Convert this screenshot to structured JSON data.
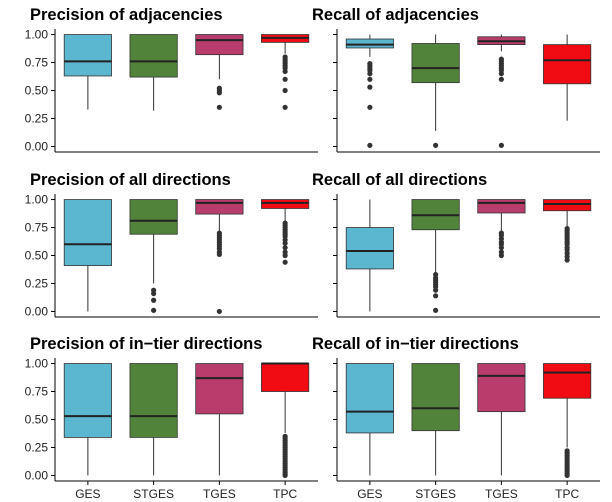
{
  "chart_data": [
    {
      "type": "boxplot",
      "title": "Precision of adjacencies",
      "ylim": [
        0,
        1
      ],
      "yticks": [
        "0.00",
        "0.25",
        "0.50",
        "0.75",
        "1.00"
      ],
      "categories": [
        "GES",
        "STGES",
        "TGES",
        "TPC"
      ],
      "boxes": [
        {
          "name": "GES",
          "whisker_low": 0.33,
          "q1": 0.63,
          "median": 0.76,
          "q3": 1.0,
          "whisker_high": 1.0,
          "outliers": []
        },
        {
          "name": "STGES",
          "whisker_low": 0.32,
          "q1": 0.62,
          "median": 0.76,
          "q3": 1.0,
          "whisker_high": 1.0,
          "outliers": []
        },
        {
          "name": "TGES",
          "whisker_low": 0.6,
          "q1": 0.82,
          "median": 0.95,
          "q3": 1.0,
          "whisker_high": 1.0,
          "outliers": [
            0.52,
            0.5,
            0.48,
            0.35
          ]
        },
        {
          "name": "TPC",
          "whisker_low": 0.83,
          "q1": 0.93,
          "median": 0.97,
          "q3": 1.0,
          "whisker_high": 1.0,
          "outliers": [
            0.8,
            0.78,
            0.76,
            0.74,
            0.72,
            0.7,
            0.67,
            0.6,
            0.5,
            0.35
          ]
        }
      ]
    },
    {
      "type": "boxplot",
      "title": "Recall of adjacencies",
      "ylim": [
        0,
        1
      ],
      "yticks": [
        "0.00",
        "0.25",
        "0.50",
        "0.75",
        "1.00"
      ],
      "categories": [
        "GES",
        "STGES",
        "TGES",
        "TPC"
      ],
      "boxes": [
        {
          "name": "GES",
          "whisker_low": 0.8,
          "q1": 0.88,
          "median": 0.91,
          "q3": 0.96,
          "whisker_high": 1.0,
          "outliers": [
            0.74,
            0.72,
            0.7,
            0.68,
            0.65,
            0.6,
            0.53,
            0.35,
            0.01
          ]
        },
        {
          "name": "STGES",
          "whisker_low": 0.14,
          "q1": 0.57,
          "median": 0.7,
          "q3": 0.92,
          "whisker_high": 1.0,
          "outliers": [
            0.01
          ]
        },
        {
          "name": "TGES",
          "whisker_low": 0.85,
          "q1": 0.91,
          "median": 0.94,
          "q3": 0.98,
          "whisker_high": 1.0,
          "outliers": [
            0.78,
            0.76,
            0.74,
            0.72,
            0.7,
            0.68,
            0.65,
            0.6,
            0.01
          ]
        },
        {
          "name": "TPC",
          "whisker_low": 0.23,
          "q1": 0.56,
          "median": 0.77,
          "q3": 0.91,
          "whisker_high": 1.0,
          "outliers": []
        }
      ]
    },
    {
      "type": "boxplot",
      "title": "Precision of all directions",
      "ylim": [
        0,
        1
      ],
      "yticks": [
        "0.00",
        "0.25",
        "0.50",
        "0.75",
        "1.00"
      ],
      "categories": [
        "GES",
        "STGES",
        "TGES",
        "TPC"
      ],
      "boxes": [
        {
          "name": "GES",
          "whisker_low": 0.0,
          "q1": 0.41,
          "median": 0.6,
          "q3": 1.0,
          "whisker_high": 1.0,
          "outliers": []
        },
        {
          "name": "STGES",
          "whisker_low": 0.25,
          "q1": 0.69,
          "median": 0.81,
          "q3": 1.0,
          "whisker_high": 1.0,
          "outliers": [
            0.19,
            0.16,
            0.1,
            0.01
          ]
        },
        {
          "name": "TGES",
          "whisker_low": 0.72,
          "q1": 0.87,
          "median": 0.97,
          "q3": 1.0,
          "whisker_high": 1.0,
          "outliers": [
            0.7,
            0.68,
            0.66,
            0.64,
            0.62,
            0.6,
            0.58,
            0.56,
            0.53,
            0.51,
            0.0
          ]
        },
        {
          "name": "TPC",
          "whisker_low": 0.8,
          "q1": 0.92,
          "median": 0.97,
          "q3": 1.0,
          "whisker_high": 1.0,
          "outliers": [
            0.79,
            0.77,
            0.75,
            0.73,
            0.71,
            0.69,
            0.67,
            0.64,
            0.61,
            0.57,
            0.53,
            0.5,
            0.44
          ]
        }
      ]
    },
    {
      "type": "boxplot",
      "title": "Recall of all directions",
      "ylim": [
        0,
        1
      ],
      "yticks": [
        "0.00",
        "0.25",
        "0.50",
        "0.75",
        "1.00"
      ],
      "categories": [
        "GES",
        "STGES",
        "TGES",
        "TPC"
      ],
      "boxes": [
        {
          "name": "GES",
          "whisker_low": 0.0,
          "q1": 0.38,
          "median": 0.54,
          "q3": 0.75,
          "whisker_high": 1.0,
          "outliers": []
        },
        {
          "name": "STGES",
          "whisker_low": 0.35,
          "q1": 0.73,
          "median": 0.86,
          "q3": 1.0,
          "whisker_high": 1.0,
          "outliers": [
            0.33,
            0.3,
            0.28,
            0.26,
            0.24,
            0.22,
            0.19,
            0.14,
            0.01
          ]
        },
        {
          "name": "TGES",
          "whisker_low": 0.72,
          "q1": 0.88,
          "median": 0.97,
          "q3": 1.0,
          "whisker_high": 1.0,
          "outliers": [
            0.7,
            0.68,
            0.65,
            0.62,
            0.6,
            0.57,
            0.53,
            0.5
          ]
        },
        {
          "name": "TPC",
          "whisker_low": 0.76,
          "q1": 0.9,
          "median": 0.96,
          "q3": 1.0,
          "whisker_high": 1.0,
          "outliers": [
            0.74,
            0.72,
            0.7,
            0.68,
            0.66,
            0.64,
            0.62,
            0.6,
            0.57,
            0.55,
            0.52,
            0.49,
            0.46
          ]
        }
      ]
    },
    {
      "type": "boxplot",
      "title": "Precision of in−tier directions",
      "ylim": [
        0,
        1
      ],
      "yticks": [
        "0.00",
        "0.25",
        "0.50",
        "0.75",
        "1.00"
      ],
      "categories": [
        "GES",
        "STGES",
        "TGES",
        "TPC"
      ],
      "boxes": [
        {
          "name": "GES",
          "whisker_low": 0.0,
          "q1": 0.34,
          "median": 0.53,
          "q3": 1.0,
          "whisker_high": 1.0,
          "outliers": []
        },
        {
          "name": "STGES",
          "whisker_low": 0.0,
          "q1": 0.34,
          "median": 0.53,
          "q3": 1.0,
          "whisker_high": 1.0,
          "outliers": []
        },
        {
          "name": "TGES",
          "whisker_low": 0.0,
          "q1": 0.55,
          "median": 0.87,
          "q3": 1.0,
          "whisker_high": 1.0,
          "outliers": []
        },
        {
          "name": "TPC",
          "whisker_low": 0.38,
          "q1": 0.75,
          "median": 1.0,
          "q3": 1.0,
          "whisker_high": 1.0,
          "outliers": [
            0.35,
            0.33,
            0.31,
            0.29,
            0.27,
            0.25,
            0.23,
            0.21,
            0.19,
            0.17,
            0.15,
            0.13,
            0.11,
            0.09,
            0.07,
            0.05,
            0.03,
            0.01,
            0.0
          ]
        }
      ]
    },
    {
      "type": "boxplot",
      "title": "Recall of in−tier directions",
      "ylim": [
        0,
        1
      ],
      "yticks": [
        "0.00",
        "0.25",
        "0.50",
        "0.75",
        "1.00"
      ],
      "categories": [
        "GES",
        "STGES",
        "TGES",
        "TPC"
      ],
      "boxes": [
        {
          "name": "GES",
          "whisker_low": 0.0,
          "q1": 0.38,
          "median": 0.57,
          "q3": 1.0,
          "whisker_high": 1.0,
          "outliers": []
        },
        {
          "name": "STGES",
          "whisker_low": 0.0,
          "q1": 0.4,
          "median": 0.6,
          "q3": 1.0,
          "whisker_high": 1.0,
          "outliers": []
        },
        {
          "name": "TGES",
          "whisker_low": 0.0,
          "q1": 0.57,
          "median": 0.89,
          "q3": 1.0,
          "whisker_high": 1.0,
          "outliers": []
        },
        {
          "name": "TPC",
          "whisker_low": 0.25,
          "q1": 0.69,
          "median": 0.92,
          "q3": 1.0,
          "whisker_high": 1.0,
          "outliers": [
            0.22,
            0.2,
            0.18,
            0.16,
            0.14,
            0.12,
            0.1,
            0.08,
            0.06,
            0.04,
            0.02,
            0.0
          ]
        }
      ]
    }
  ],
  "colors": {
    "GES": "#5bb6cf",
    "STGES": "#51843a",
    "TGES": "#b83c6c",
    "TPC": "#f00c12",
    "median": "#222222",
    "whisker": "#333333",
    "outlier": "#333333",
    "axis": "#000000"
  }
}
